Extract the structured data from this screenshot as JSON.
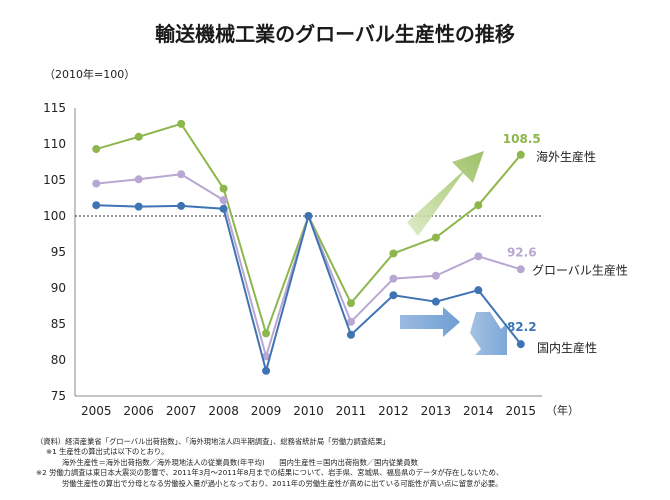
{
  "title": "輸送機械工業のグローバル生産性の推移",
  "chart_data": {
    "type": "line",
    "unit_note": "（2010年=100）",
    "x_unit": "（年）",
    "categories": [
      "2005",
      "2006",
      "2007",
      "2008",
      "2009",
      "2010",
      "2011",
      "2012",
      "2013",
      "2014",
      "2015"
    ],
    "ylim": [
      75,
      115
    ],
    "yticks": [
      "75",
      "80",
      "85",
      "90",
      "95",
      "100",
      "105",
      "110",
      "115"
    ],
    "reference_line": 100,
    "grid": false,
    "series": [
      {
        "name": "海外生産性",
        "color": "#8DB64B",
        "values": [
          109.3,
          111.0,
          112.8,
          103.8,
          83.7,
          100.0,
          87.9,
          94.8,
          97.0,
          101.5,
          108.5
        ],
        "end_label": "108.5"
      },
      {
        "name": "グローバル生産性",
        "color": "#B9A7D3",
        "values": [
          104.5,
          105.1,
          105.8,
          102.2,
          80.5,
          100.0,
          85.3,
          91.3,
          91.7,
          94.4,
          92.6
        ],
        "end_label": "92.6"
      },
      {
        "name": "国内生産性",
        "color": "#3F74B4",
        "values": [
          101.5,
          101.3,
          101.4,
          101.0,
          78.5,
          100.0,
          83.5,
          89.0,
          88.1,
          89.7,
          82.2
        ],
        "end_label": "82.2"
      }
    ]
  },
  "notes": [
    "（資料）経済産業省「グローバル出荷指数」、「海外現地法人四半期調査」、総務省統計局「労働力調査結果」",
    "※1 生産性の算出式は以下のとおり。",
    "海外生産性＝海外出荷指数／海外現地法人の従業員数(年平均)　　国内生産性＝国内出荷指数／国内従業員数",
    "※2 労働力調査は東日本大震災の影響で、2011年3月～2011年8月までの結果について、岩手県、宮城県、福島県のデータが存在しないため、",
    "労働生産性の算出で分母となる労働投入量が過小となっており、2011年の労働生産性が高めに出ている可能性が高い点に留意が必要。"
  ]
}
